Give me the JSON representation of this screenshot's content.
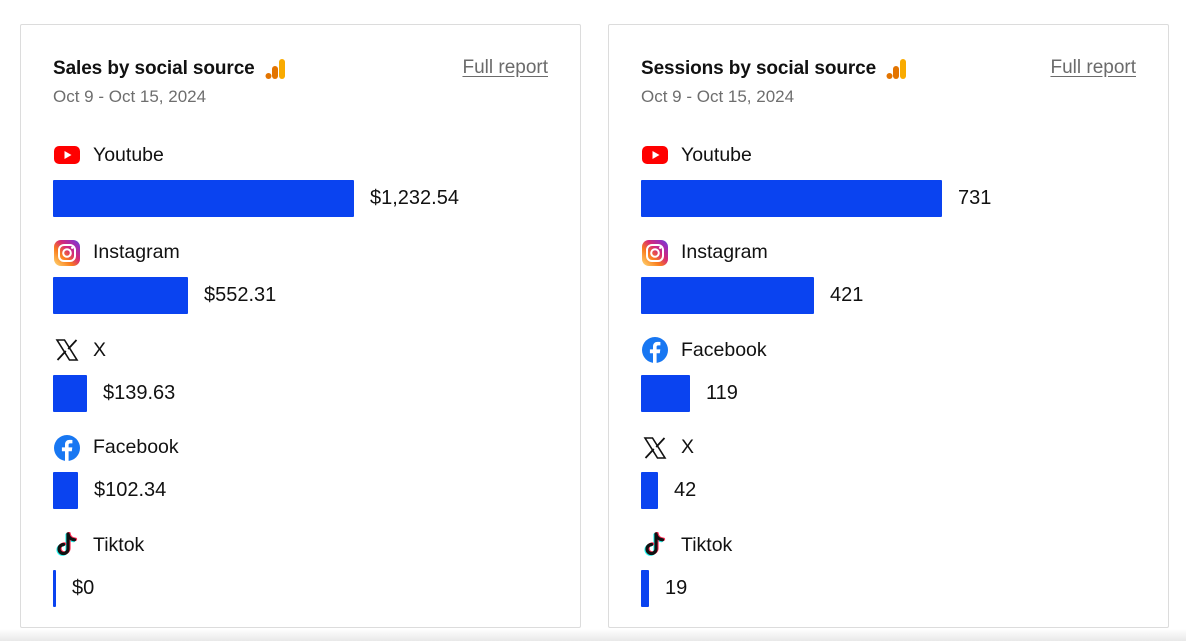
{
  "cards": [
    {
      "id": "sales",
      "title": "Sales by social source",
      "date_range": "Oct 9 - Oct 15, 2024",
      "full_report_label": "Full report",
      "items": [
        {
          "label": "Youtube",
          "icon": "youtube-icon",
          "value_text": "$1,232.54",
          "value": 1232.54
        },
        {
          "label": "Instagram",
          "icon": "instagram-icon",
          "value_text": "$552.31",
          "value": 552.31
        },
        {
          "label": "X",
          "icon": "x-icon",
          "value_text": "$139.63",
          "value": 139.63
        },
        {
          "label": "Facebook",
          "icon": "facebook-icon",
          "value_text": "$102.34",
          "value": 102.34
        },
        {
          "label": "Tiktok",
          "icon": "tiktok-icon",
          "value_text": "$0",
          "value": 0
        }
      ]
    },
    {
      "id": "sessions",
      "title": "Sessions by social source",
      "date_range": "Oct 9 - Oct 15, 2024",
      "full_report_label": "Full report",
      "items": [
        {
          "label": "Youtube",
          "icon": "youtube-icon",
          "value_text": "731",
          "value": 731
        },
        {
          "label": "Instagram",
          "icon": "instagram-icon",
          "value_text": "421",
          "value": 421
        },
        {
          "label": "Facebook",
          "icon": "facebook-icon",
          "value_text": "119",
          "value": 119
        },
        {
          "label": "X",
          "icon": "x-icon",
          "value_text": "42",
          "value": 42
        },
        {
          "label": "Tiktok",
          "icon": "tiktok-icon",
          "value_text": "19",
          "value": 19
        }
      ]
    }
  ],
  "colors": {
    "bar": "#0a43f0",
    "youtube": "#ff0000",
    "facebook": "#1877f2",
    "ga_orange": "#f9ab00",
    "ga_dark_orange": "#e37400"
  },
  "chart_data": [
    {
      "type": "bar",
      "title": "Sales by social source",
      "categories": [
        "Youtube",
        "Instagram",
        "X",
        "Facebook",
        "Tiktok"
      ],
      "values": [
        1232.54,
        552.31,
        139.63,
        102.34,
        0
      ]
    },
    {
      "type": "bar",
      "title": "Sessions by social source",
      "categories": [
        "Youtube",
        "Instagram",
        "Facebook",
        "X",
        "Tiktok"
      ],
      "values": [
        731,
        421,
        119,
        42,
        19
      ]
    }
  ]
}
